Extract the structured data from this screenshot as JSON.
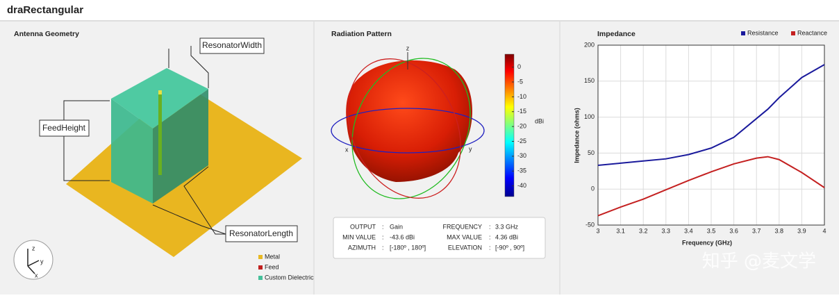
{
  "window": {
    "title": "draRectangular"
  },
  "geometry_panel": {
    "title": "Antenna Geometry",
    "labels": {
      "resonator_width": "ResonatorWidth",
      "feed_height": "FeedHeight",
      "resonator_length": "ResonatorLength"
    },
    "axes": [
      "z",
      "y",
      "x"
    ],
    "legend": [
      {
        "name": "Metal",
        "color": "#e8b923"
      },
      {
        "name": "Feed",
        "color": "#c0201e"
      },
      {
        "name": "Custom Dielectric",
        "color": "#45c09a"
      }
    ]
  },
  "pattern_panel": {
    "title": "Radiation Pattern",
    "axes": [
      "z",
      "x",
      "y"
    ],
    "colorbar": {
      "unit": "dBi",
      "clim": [
        -43.6,
        4.36
      ],
      "ticks": [
        0,
        -5,
        -10,
        -15,
        -20,
        -25,
        -30,
        -35,
        -40
      ]
    },
    "separator": ":",
    "info": [
      {
        "label": "OUTPUT",
        "value": "Gain"
      },
      {
        "label": "MIN VALUE",
        "value": "-43.6 dBi"
      },
      {
        "label": "AZIMUTH",
        "value": "[-180º , 180º]"
      },
      {
        "label": "FREQUENCY",
        "value": "3.3 GHz"
      },
      {
        "label": "MAX VALUE",
        "value": "4.36 dBi"
      },
      {
        "label": "ELEVATION",
        "value": "[-90º , 90º]"
      }
    ]
  },
  "impedance_chart": {
    "type": "line",
    "title": "Impedance",
    "x_label": "Frequency (GHz)",
    "y_label": "Impedance (ohms)",
    "x": [
      3,
      3.1,
      3.2,
      3.3,
      3.4,
      3.5,
      3.6,
      3.7,
      3.75,
      3.8,
      3.9,
      4
    ],
    "series": [
      {
        "name": "Resistance",
        "color": "#1a1a9c",
        "values": [
          33,
          36,
          39,
          42,
          48,
          57,
          72,
          98,
          111,
          127,
          155,
          173
        ]
      },
      {
        "name": "Reactance",
        "color": "#c42020",
        "values": [
          -37,
          -25,
          -14,
          -1,
          12,
          24,
          35,
          43,
          45,
          41,
          23,
          2
        ]
      }
    ],
    "xlim": [
      3,
      4
    ],
    "xticks": [
      3,
      3.1,
      3.2,
      3.3,
      3.4,
      3.5,
      3.6,
      3.7,
      3.8,
      3.9,
      4
    ],
    "ylim": [
      -50,
      200
    ],
    "yticks": [
      -50,
      0,
      50,
      100,
      150,
      200
    ],
    "grid": true,
    "legend": "top-right"
  },
  "watermark": "知乎 @麦文学"
}
